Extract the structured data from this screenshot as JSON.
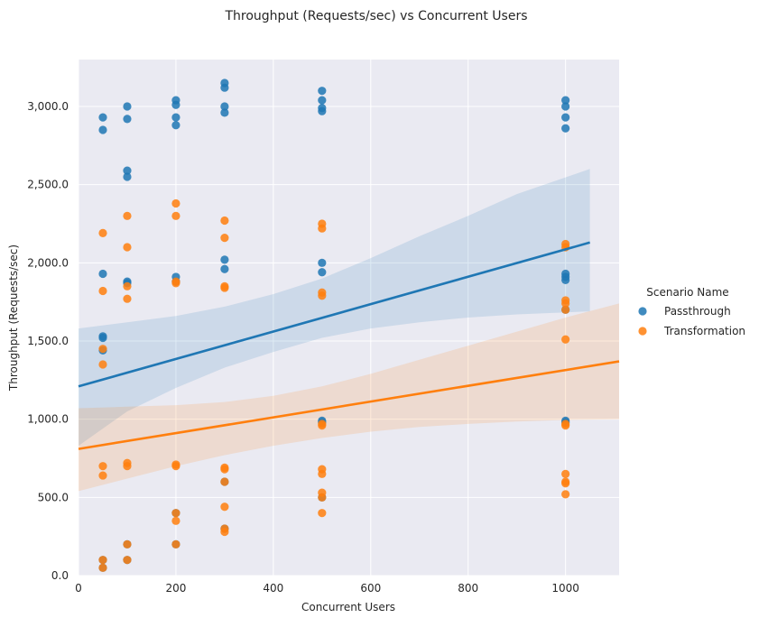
{
  "chart_data": {
    "type": "scatter",
    "title": "Throughput (Requests/sec) vs Concurrent Users",
    "xlabel": "Concurrent Users",
    "ylabel": "Throughput (Requests/sec)",
    "xlim": [
      0,
      1110
    ],
    "ylim": [
      0,
      3300
    ],
    "x_ticks": [
      0,
      200,
      400,
      600,
      800,
      1000
    ],
    "x_tick_labels": [
      "0",
      "200",
      "400",
      "600",
      "800",
      "1000"
    ],
    "y_ticks": [
      0,
      500,
      1000,
      1500,
      2000,
      2500,
      3000
    ],
    "y_tick_labels": [
      "0.0",
      "500.0",
      "1,000.0",
      "1,500.0",
      "2,000.0",
      "2,500.0",
      "3,000.0"
    ],
    "grid": true,
    "legend": {
      "title": "Scenario Name",
      "placement": "right"
    },
    "series": [
      {
        "name": "Passthrough",
        "color": "#1f77b4",
        "points": [
          [
            50,
            2930
          ],
          [
            50,
            2850
          ],
          [
            50,
            1930
          ],
          [
            50,
            1530
          ],
          [
            50,
            1520
          ],
          [
            50,
            1440
          ],
          [
            50,
            100
          ],
          [
            50,
            50
          ],
          [
            100,
            3000
          ],
          [
            100,
            2920
          ],
          [
            100,
            2590
          ],
          [
            100,
            2550
          ],
          [
            100,
            1880
          ],
          [
            100,
            1870
          ],
          [
            100,
            200
          ],
          [
            100,
            100
          ],
          [
            200,
            3040
          ],
          [
            200,
            3010
          ],
          [
            200,
            2930
          ],
          [
            200,
            2880
          ],
          [
            200,
            1910
          ],
          [
            200,
            1880
          ],
          [
            200,
            400
          ],
          [
            200,
            200
          ],
          [
            300,
            3150
          ],
          [
            300,
            3120
          ],
          [
            300,
            3000
          ],
          [
            300,
            2960
          ],
          [
            300,
            2020
          ],
          [
            300,
            1960
          ],
          [
            300,
            600
          ],
          [
            300,
            300
          ],
          [
            500,
            3100
          ],
          [
            500,
            3040
          ],
          [
            500,
            2990
          ],
          [
            500,
            2970
          ],
          [
            500,
            2000
          ],
          [
            500,
            1940
          ],
          [
            500,
            990
          ],
          [
            500,
            980
          ],
          [
            500,
            500
          ],
          [
            1000,
            3040
          ],
          [
            1000,
            3000
          ],
          [
            1000,
            2930
          ],
          [
            1000,
            2860
          ],
          [
            1000,
            1930
          ],
          [
            1000,
            1910
          ],
          [
            1000,
            1890
          ],
          [
            1000,
            1700
          ],
          [
            1000,
            990
          ],
          [
            1000,
            980
          ]
        ],
        "regression": {
          "x_range": [
            0,
            1050
          ],
          "line": [
            [
              0,
              1210
            ],
            [
              1050,
              2130
            ]
          ],
          "ci_lower": [
            [
              0,
              830
            ],
            [
              100,
              1050
            ],
            [
              200,
              1200
            ],
            [
              300,
              1330
            ],
            [
              400,
              1430
            ],
            [
              500,
              1520
            ],
            [
              600,
              1580
            ],
            [
              700,
              1620
            ],
            [
              800,
              1650
            ],
            [
              900,
              1670
            ],
            [
              1050,
              1690
            ]
          ],
          "ci_upper": [
            [
              0,
              1580
            ],
            [
              100,
              1620
            ],
            [
              200,
              1660
            ],
            [
              300,
              1720
            ],
            [
              400,
              1800
            ],
            [
              500,
              1900
            ],
            [
              600,
              2030
            ],
            [
              700,
              2170
            ],
            [
              800,
              2300
            ],
            [
              900,
              2440
            ],
            [
              1050,
              2600
            ]
          ]
        }
      },
      {
        "name": "Transformation",
        "color": "#ff7f0e",
        "points": [
          [
            50,
            2190
          ],
          [
            50,
            1820
          ],
          [
            50,
            1450
          ],
          [
            50,
            1350
          ],
          [
            50,
            700
          ],
          [
            50,
            640
          ],
          [
            50,
            100
          ],
          [
            50,
            50
          ],
          [
            100,
            2300
          ],
          [
            100,
            2100
          ],
          [
            100,
            1850
          ],
          [
            100,
            1770
          ],
          [
            100,
            720
          ],
          [
            100,
            700
          ],
          [
            100,
            200
          ],
          [
            100,
            100
          ],
          [
            200,
            2380
          ],
          [
            200,
            2300
          ],
          [
            200,
            1880
          ],
          [
            200,
            1870
          ],
          [
            200,
            710
          ],
          [
            200,
            700
          ],
          [
            200,
            400
          ],
          [
            200,
            350
          ],
          [
            200,
            200
          ],
          [
            300,
            2270
          ],
          [
            300,
            2160
          ],
          [
            300,
            1850
          ],
          [
            300,
            1840
          ],
          [
            300,
            690
          ],
          [
            300,
            680
          ],
          [
            300,
            600
          ],
          [
            300,
            440
          ],
          [
            300,
            300
          ],
          [
            300,
            280
          ],
          [
            500,
            2250
          ],
          [
            500,
            2220
          ],
          [
            500,
            1810
          ],
          [
            500,
            1790
          ],
          [
            500,
            970
          ],
          [
            500,
            960
          ],
          [
            500,
            680
          ],
          [
            500,
            650
          ],
          [
            500,
            530
          ],
          [
            500,
            500
          ],
          [
            500,
            400
          ],
          [
            1000,
            2120
          ],
          [
            1000,
            2100
          ],
          [
            1000,
            1760
          ],
          [
            1000,
            1740
          ],
          [
            1000,
            1700
          ],
          [
            1000,
            1510
          ],
          [
            1000,
            970
          ],
          [
            1000,
            960
          ],
          [
            1000,
            650
          ],
          [
            1000,
            600
          ],
          [
            1000,
            590
          ],
          [
            1000,
            520
          ]
        ],
        "regression": {
          "x_range": [
            0,
            1110
          ],
          "line": [
            [
              0,
              810
            ],
            [
              1110,
              1370
            ]
          ],
          "ci_lower": [
            [
              0,
              540
            ],
            [
              100,
              620
            ],
            [
              200,
              700
            ],
            [
              300,
              770
            ],
            [
              400,
              830
            ],
            [
              500,
              880
            ],
            [
              600,
              920
            ],
            [
              700,
              950
            ],
            [
              800,
              970
            ],
            [
              900,
              985
            ],
            [
              1000,
              995
            ],
            [
              1110,
              1000
            ]
          ],
          "ci_upper": [
            [
              0,
              1070
            ],
            [
              100,
              1080
            ],
            [
              200,
              1090
            ],
            [
              300,
              1110
            ],
            [
              400,
              1150
            ],
            [
              500,
              1210
            ],
            [
              600,
              1290
            ],
            [
              700,
              1380
            ],
            [
              800,
              1470
            ],
            [
              900,
              1560
            ],
            [
              1000,
              1650
            ],
            [
              1110,
              1740
            ]
          ]
        }
      }
    ]
  }
}
